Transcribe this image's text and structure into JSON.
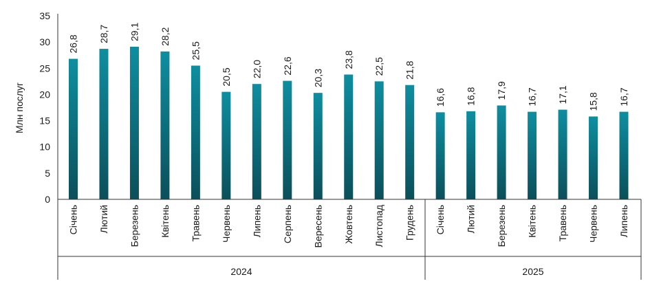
{
  "chart_data": {
    "type": "bar",
    "ylabel": "Млн послуг",
    "ylim": [
      0,
      35
    ],
    "yticks": [
      "0",
      "5",
      "10",
      "15",
      "20",
      "25",
      "30",
      "35"
    ],
    "grid": false,
    "colors": {
      "bar_top": "#0e8ea0",
      "bar_bottom": "#0b4f5a"
    },
    "groups": [
      {
        "label": "2024",
        "categories": [
          "Січень",
          "Лютий",
          "Березень",
          "Квітень",
          "Травень",
          "Червень",
          "Липень",
          "Серпень",
          "Вересень",
          "Жовтень",
          "Листопад",
          "Грудень"
        ],
        "values": [
          26.8,
          28.7,
          29.1,
          28.2,
          25.5,
          20.5,
          22.0,
          22.6,
          20.3,
          23.8,
          22.5,
          21.8
        ],
        "value_labels": [
          "26,8",
          "28,7",
          "29,1",
          "28,2",
          "25,5",
          "20,5",
          "22,0",
          "22,6",
          "20,3",
          "23,8",
          "22,5",
          "21,8"
        ]
      },
      {
        "label": "2025",
        "categories": [
          "Січень",
          "Лютий",
          "Березень",
          "Квітень",
          "Травень",
          "Червень",
          "Липень"
        ],
        "values": [
          16.6,
          16.8,
          17.9,
          16.7,
          17.1,
          15.8,
          16.7
        ],
        "value_labels": [
          "16,6",
          "16,8",
          "17,9",
          "16,7",
          "17,1",
          "15,8",
          "16,7"
        ]
      }
    ]
  }
}
